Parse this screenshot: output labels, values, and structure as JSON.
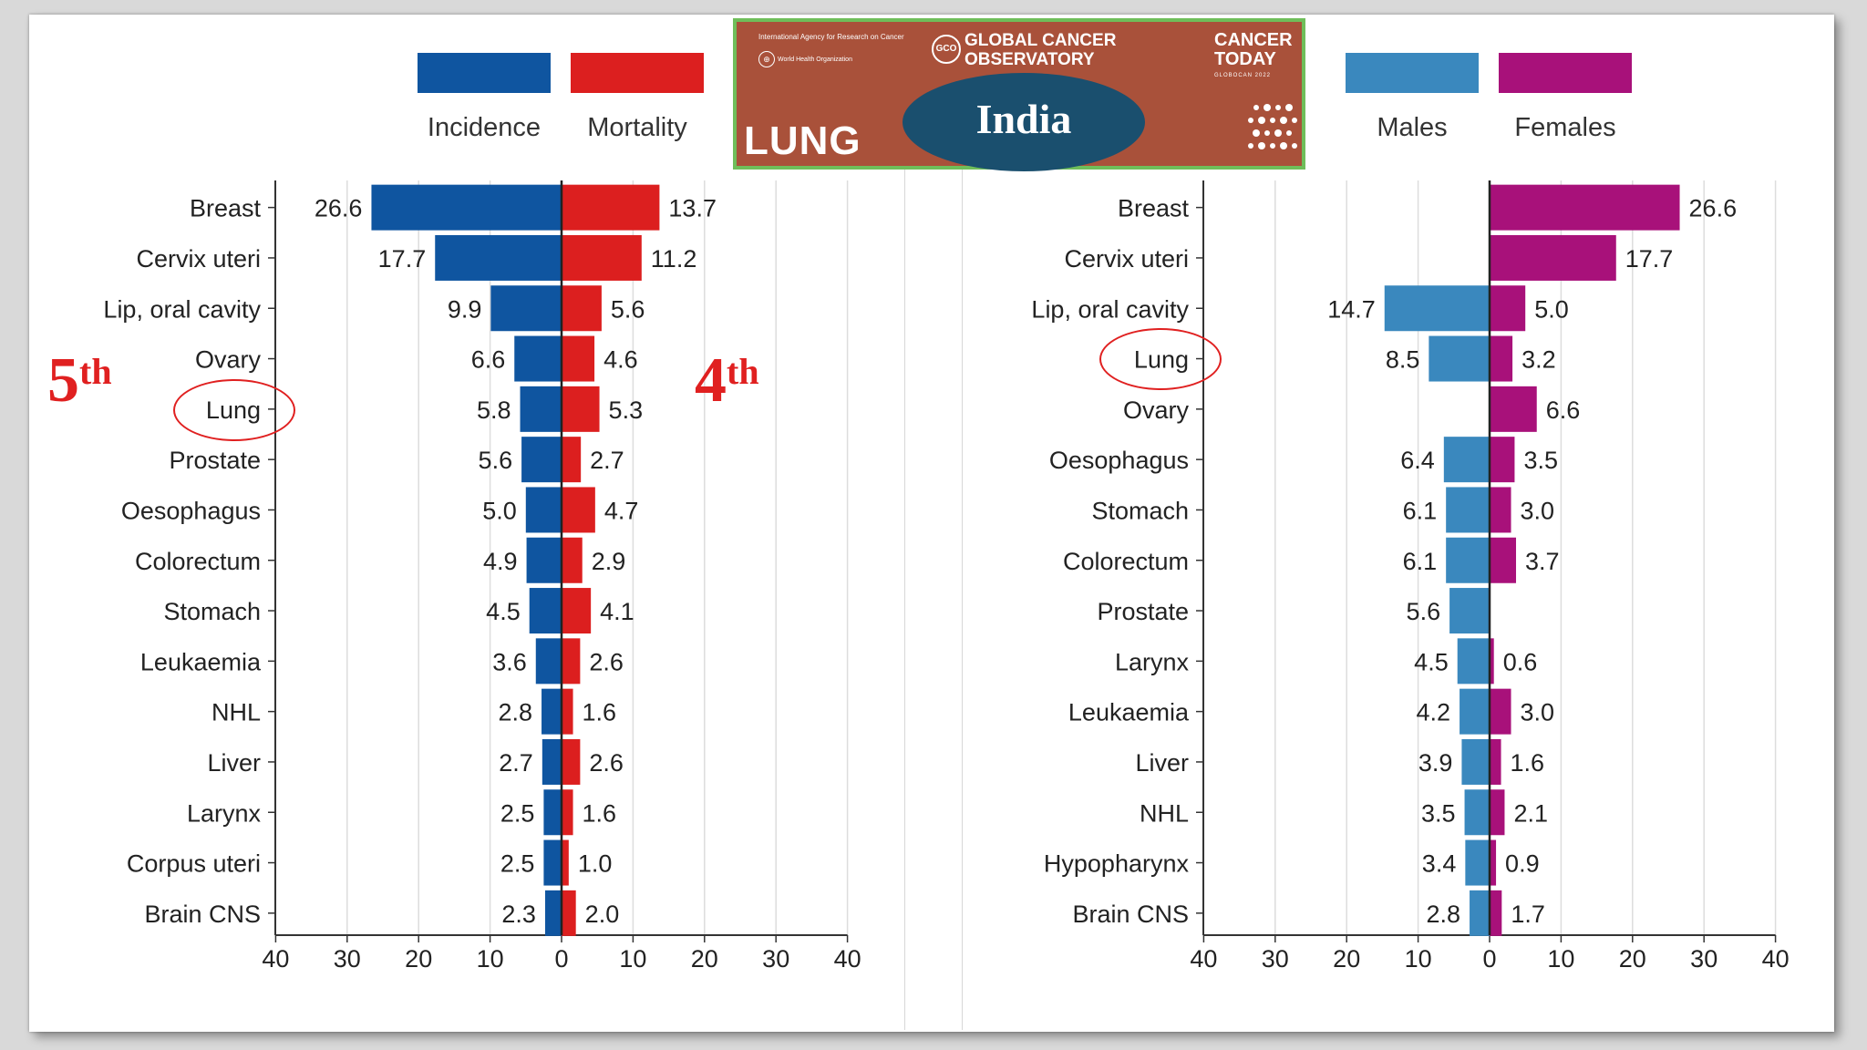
{
  "legend": {
    "left": [
      {
        "label": "Incidence",
        "color": "#0f55a0"
      },
      {
        "label": "Mortality",
        "color": "#dc1f1f"
      }
    ],
    "right": [
      {
        "label": "Males",
        "color": "#3a88be"
      },
      {
        "label": "Females",
        "color": "#a8117a"
      }
    ]
  },
  "banner": {
    "iarc_text": "International Agency for Research on Cancer",
    "who_text": "World Health Organization",
    "observatory_title": "GLOBAL CANCER OBSERVATORY",
    "gco_badge": "GCO",
    "today_title": "CANCER TODAY",
    "today_sub": "GLOBOCAN 2022",
    "cancer_label": "LUNG",
    "country": "India",
    "colors": {
      "background": "#a9513a",
      "border": "#6fbe5a",
      "oval": "#1a4f6e"
    }
  },
  "annotations": {
    "incidence_rank": {
      "number": "5",
      "suffix": "th"
    },
    "mortality_rank": {
      "number": "4",
      "suffix": "th"
    },
    "color": "#e02020"
  },
  "chart_data": [
    {
      "type": "bar",
      "orientation": "horizontal-diverging",
      "title": "",
      "categories": [
        "Breast",
        "Cervix uteri",
        "Lip, oral cavity",
        "Ovary",
        "Lung",
        "Prostate",
        "Oesophagus",
        "Colorectum",
        "Stomach",
        "Leukaemia",
        "NHL",
        "Liver",
        "Larynx",
        "Corpus uteri",
        "Brain CNS"
      ],
      "series": [
        {
          "name": "Incidence",
          "side": "left",
          "color": "#0f55a0",
          "values": [
            26.6,
            17.7,
            9.9,
            6.6,
            5.8,
            5.6,
            5.0,
            4.9,
            4.5,
            3.6,
            2.8,
            2.7,
            2.5,
            2.5,
            2.3
          ],
          "labels": [
            "26.6",
            "17.7",
            "9.9",
            "6.6",
            "5.8",
            "5.6",
            "5.0",
            "4.9",
            "4.5",
            "3.6",
            "2.8",
            "2.7",
            "2.5",
            "2.5",
            "2.3"
          ]
        },
        {
          "name": "Mortality",
          "side": "right",
          "color": "#dc1f1f",
          "values": [
            13.7,
            11.2,
            5.6,
            4.6,
            5.3,
            2.7,
            4.7,
            2.9,
            4.1,
            2.6,
            1.6,
            2.6,
            1.6,
            1.0,
            2.0
          ],
          "labels": [
            "13.7",
            "11.2",
            "5.6",
            "4.6",
            "5.3",
            "2.7",
            "4.7",
            "2.9",
            "4.1",
            "2.6",
            "1.6",
            "2.6",
            "1.6",
            "1.0",
            "2.0"
          ]
        }
      ],
      "xticks": [
        "40",
        "30",
        "20",
        "10",
        "0",
        "10",
        "20",
        "30",
        "40"
      ],
      "xlim": [
        -40,
        40
      ],
      "highlight": "Lung",
      "grid": true
    },
    {
      "type": "bar",
      "orientation": "horizontal-diverging",
      "title": "",
      "categories": [
        "Breast",
        "Cervix uteri",
        "Lip, oral cavity",
        "Lung",
        "Ovary",
        "Oesophagus",
        "Stomach",
        "Colorectum",
        "Prostate",
        "Larynx",
        "Leukaemia",
        "Liver",
        "NHL",
        "Hypopharynx",
        "Brain CNS"
      ],
      "series": [
        {
          "name": "Males",
          "side": "left",
          "color": "#3a88be",
          "values": [
            0,
            0,
            14.7,
            8.5,
            0,
            6.4,
            6.1,
            6.1,
            5.6,
            4.5,
            4.2,
            3.9,
            3.5,
            3.4,
            2.8
          ],
          "labels": [
            "",
            "",
            "14.7",
            "8.5",
            "",
            "6.4",
            "6.1",
            "6.1",
            "5.6",
            "4.5",
            "4.2",
            "3.9",
            "3.5",
            "3.4",
            "2.8"
          ]
        },
        {
          "name": "Females",
          "side": "right",
          "color": "#a8117a",
          "values": [
            26.6,
            17.7,
            5.0,
            3.2,
            6.6,
            3.5,
            3.0,
            3.7,
            0,
            0.6,
            3.0,
            1.6,
            2.1,
            0.9,
            1.7
          ],
          "labels": [
            "26.6",
            "17.7",
            "5.0",
            "3.2",
            "6.6",
            "3.5",
            "3.0",
            "3.7",
            "",
            "0.6",
            "3.0",
            "1.6",
            "2.1",
            "0.9",
            "1.7"
          ]
        }
      ],
      "xticks": [
        "40",
        "30",
        "20",
        "10",
        "0",
        "10",
        "20",
        "30",
        "40"
      ],
      "xlim": [
        -40,
        40
      ],
      "highlight": "Lung",
      "grid": true
    }
  ]
}
